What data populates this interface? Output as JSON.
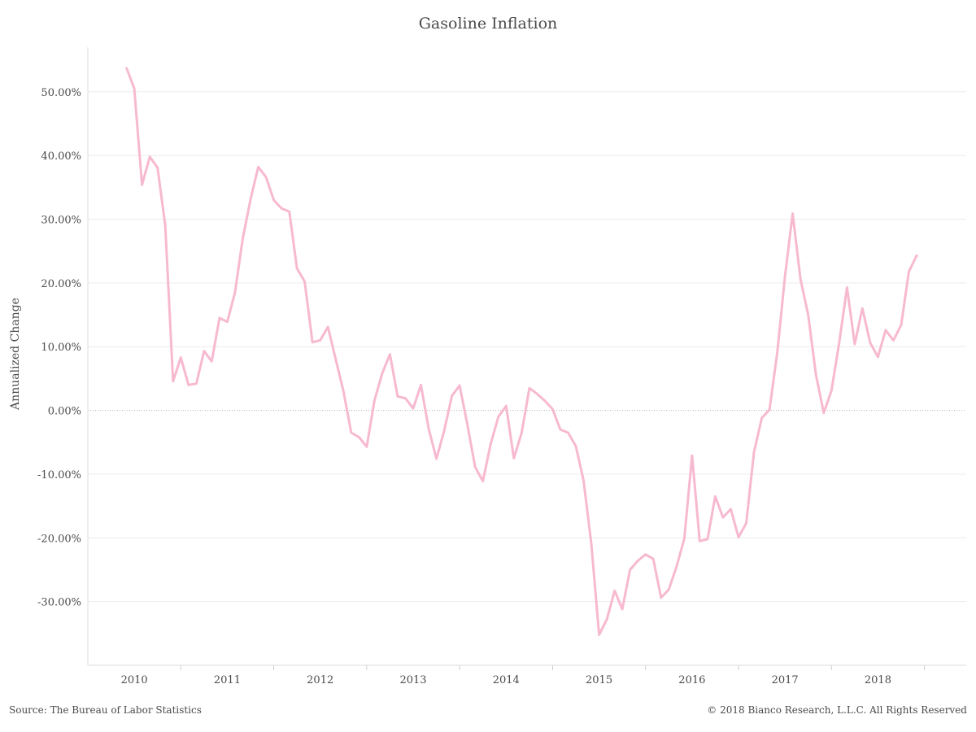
{
  "footer": {
    "source": "Source: The Bureau of Labor Statistics",
    "copyright": "© 2018 Bianco Research, L.L.C. All Rights Reserved"
  },
  "chart_data": {
    "type": "line",
    "title": "Gasoline Inflation",
    "xlabel": "",
    "ylabel": "Annualized Change",
    "x_range": [
      2009.5,
      2018.95
    ],
    "ylim": [
      -40,
      57
    ],
    "y_ticks": [
      -30,
      -20,
      -10,
      0,
      10,
      20,
      30,
      40,
      50
    ],
    "y_tick_labels": [
      "-30.00%",
      "-20.00%",
      "-10.00%",
      "0.00%",
      "10.00%",
      "20.00%",
      "30.00%",
      "40.00%",
      "50.00%"
    ],
    "x_ticks": [
      2010,
      2011,
      2012,
      2013,
      2014,
      2015,
      2016,
      2017,
      2018
    ],
    "x_tick_labels": [
      "2010",
      "2011",
      "2012",
      "2013",
      "2014",
      "2015",
      "2016",
      "2017",
      "2018"
    ],
    "grid": true,
    "line_color": "#f7b9d0",
    "series": [
      {
        "x": [
          2009.917,
          2010.0,
          2010.083,
          2010.167,
          2010.25,
          2010.333,
          2010.417,
          2010.5,
          2010.583,
          2010.667,
          2010.75,
          2010.833,
          2010.917,
          2011.0,
          2011.083,
          2011.167,
          2011.25,
          2011.333,
          2011.417,
          2011.5,
          2011.583,
          2011.667,
          2011.75,
          2011.833,
          2011.917,
          2012.0,
          2012.083,
          2012.167,
          2012.25,
          2012.333,
          2012.417,
          2012.5,
          2012.583,
          2012.667,
          2012.75,
          2012.833,
          2012.917,
          2013.0,
          2013.083,
          2013.167,
          2013.25,
          2013.333,
          2013.417,
          2013.5,
          2013.583,
          2013.667,
          2013.75,
          2013.833,
          2013.917,
          2014.0,
          2014.083,
          2014.167,
          2014.25,
          2014.333,
          2014.417,
          2014.5,
          2014.583,
          2014.667,
          2014.75,
          2014.833,
          2014.917,
          2015.0,
          2015.083,
          2015.167,
          2015.25,
          2015.333,
          2015.417,
          2015.5,
          2015.583,
          2015.667,
          2015.75,
          2015.833,
          2015.917,
          2016.0,
          2016.083,
          2016.167,
          2016.25,
          2016.333,
          2016.417,
          2016.5,
          2016.583,
          2016.667,
          2016.75,
          2016.833,
          2016.917,
          2017.0,
          2017.083,
          2017.167,
          2017.25,
          2017.333,
          2017.417,
          2017.5,
          2017.583,
          2017.667,
          2017.75,
          2017.833,
          2017.917,
          2018.0,
          2018.083,
          2018.167,
          2018.25,
          2018.333,
          2018.417
        ],
        "values": [
          53.7,
          50.5,
          35.4,
          39.8,
          38.1,
          29.0,
          4.6,
          8.3,
          4.0,
          4.2,
          9.3,
          7.7,
          14.5,
          13.9,
          18.5,
          27.0,
          33.1,
          38.2,
          36.6,
          33.0,
          31.7,
          31.2,
          22.3,
          20.2,
          10.7,
          11.0,
          13.1,
          8.0,
          3.0,
          -3.5,
          -4.2,
          -5.7,
          1.5,
          5.8,
          8.8,
          2.2,
          1.9,
          0.3,
          4.0,
          -2.9,
          -7.6,
          -3.2,
          2.3,
          3.9,
          -2.2,
          -8.9,
          -11.1,
          -5.3,
          -1.0,
          0.7,
          -7.5,
          -3.5,
          3.5,
          2.6,
          1.5,
          0.2,
          -3.0,
          -3.5,
          -5.6,
          -11.0,
          -21.0,
          -35.2,
          -32.8,
          -28.3,
          -31.2,
          -25.0,
          -23.6,
          -22.6,
          -23.3,
          -29.4,
          -28.1,
          -24.5,
          -20.1,
          -7.1,
          -20.5,
          -20.2,
          -13.5,
          -16.8,
          -15.5,
          -19.9,
          -17.7,
          -6.5,
          -1.2,
          0.1,
          9.1,
          21.0,
          30.9,
          20.6,
          15.0,
          5.6,
          -0.4,
          3.1,
          10.6,
          19.3,
          10.4,
          16.0,
          10.6,
          8.4,
          12.6,
          11.0,
          13.4,
          21.8,
          24.3
        ]
      }
    ]
  }
}
